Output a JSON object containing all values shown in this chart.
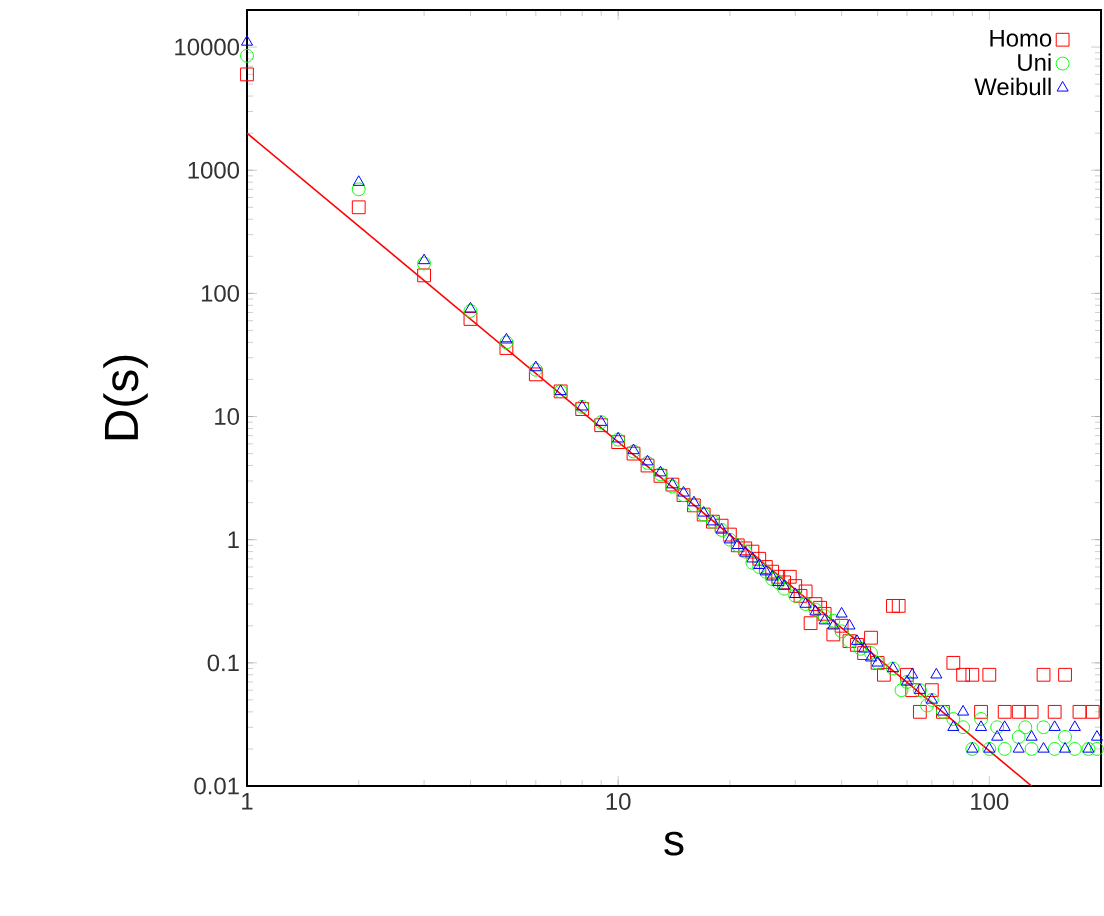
{
  "chart_data": {
    "type": "scatter",
    "xlabel": "s",
    "ylabel": "D(s)",
    "log": "xy",
    "xlim": [
      1,
      200
    ],
    "ylim": [
      0.01,
      20000
    ],
    "xticks": [
      1,
      10,
      100
    ],
    "yticks": [
      0.01,
      0.1,
      1,
      10,
      100,
      1000,
      10000
    ],
    "legend": "top right",
    "grid": false,
    "series": [
      {
        "name": "Homo",
        "color": "#ff0000",
        "marker": "square",
        "x": [
          1,
          2,
          3,
          4,
          5,
          6,
          7,
          8,
          9,
          10,
          11,
          12,
          13,
          14,
          15,
          16,
          17,
          18,
          19,
          20,
          21,
          22,
          23,
          24,
          25,
          26,
          27,
          28,
          29,
          30,
          31,
          32,
          33,
          34,
          35,
          36,
          38,
          40,
          42,
          44,
          46,
          48,
          50,
          52,
          55,
          57,
          60,
          62,
          65,
          70,
          75,
          80,
          85,
          90,
          95,
          100,
          110,
          120,
          130,
          140,
          150,
          160,
          175,
          190
        ],
        "values": [
          6000,
          500,
          140,
          62,
          36,
          22,
          16,
          11.5,
          8.5,
          6.2,
          5,
          4,
          3.3,
          2.8,
          2.3,
          1.9,
          1.6,
          1.4,
          1.3,
          1.1,
          0.9,
          0.85,
          0.8,
          0.7,
          0.6,
          0.55,
          0.5,
          0.45,
          0.5,
          0.42,
          0.35,
          0.38,
          0.21,
          0.3,
          0.28,
          0.25,
          0.17,
          0.2,
          0.15,
          0.14,
          0.12,
          0.16,
          0.1,
          0.08,
          0.29,
          0.29,
          0.08,
          0.06,
          0.04,
          0.06,
          0.04,
          0.1,
          0.08,
          0.08,
          0.04,
          0.08,
          0.04,
          0.04,
          0.04,
          0.08,
          0.04,
          0.08,
          0.04,
          0.04
        ]
      },
      {
        "name": "Uni",
        "color": "#00ff00",
        "marker": "circle",
        "x": [
          1,
          2,
          3,
          4,
          5,
          6,
          7,
          8,
          9,
          10,
          11,
          12,
          13,
          14,
          15,
          16,
          17,
          18,
          19,
          20,
          21,
          22,
          23,
          24,
          25,
          26,
          27,
          28,
          30,
          32,
          34,
          36,
          38,
          40,
          42,
          45,
          48,
          50,
          55,
          58,
          60,
          65,
          68,
          70,
          75,
          80,
          85,
          90,
          95,
          100,
          105,
          110,
          120,
          125,
          130,
          140,
          150,
          160,
          170,
          185,
          195
        ],
        "values": [
          8500,
          700,
          175,
          72,
          40,
          24,
          16,
          12,
          9,
          6.5,
          5.2,
          4.2,
          3.4,
          2.7,
          2.3,
          1.9,
          1.6,
          1.4,
          1.2,
          1.0,
          0.9,
          0.8,
          0.65,
          0.6,
          0.55,
          0.48,
          0.45,
          0.4,
          0.35,
          0.3,
          0.27,
          0.24,
          0.22,
          0.18,
          0.15,
          0.13,
          0.12,
          0.1,
          0.09,
          0.06,
          0.07,
          0.06,
          0.045,
          0.05,
          0.04,
          0.035,
          0.03,
          0.02,
          0.035,
          0.02,
          0.03,
          0.02,
          0.025,
          0.03,
          0.02,
          0.03,
          0.02,
          0.025,
          0.02,
          0.02,
          0.02
        ]
      },
      {
        "name": "Weibull",
        "color": "#0000ff",
        "marker": "triangle",
        "x": [
          1,
          2,
          3,
          4,
          5,
          6,
          7,
          8,
          9,
          10,
          11,
          12,
          13,
          14,
          15,
          16,
          17,
          18,
          19,
          20,
          21,
          22,
          23,
          24,
          25,
          26,
          27,
          28,
          30,
          32,
          34,
          36,
          38,
          40,
          42,
          44,
          46,
          48,
          50,
          55,
          60,
          62,
          65,
          70,
          72,
          75,
          80,
          85,
          90,
          95,
          100,
          105,
          110,
          120,
          130,
          140,
          150,
          160,
          170,
          185,
          195
        ],
        "values": [
          11000,
          800,
          185,
          75,
          42,
          25,
          16,
          12,
          9,
          6.6,
          5.3,
          4.3,
          3.5,
          2.8,
          2.4,
          2,
          1.65,
          1.4,
          1.2,
          1,
          0.9,
          0.78,
          0.7,
          0.62,
          0.55,
          0.5,
          0.45,
          0.42,
          0.36,
          0.3,
          0.26,
          0.22,
          0.2,
          0.25,
          0.2,
          0.15,
          0.13,
          0.11,
          0.1,
          0.09,
          0.07,
          0.08,
          0.06,
          0.05,
          0.08,
          0.04,
          0.03,
          0.04,
          0.02,
          0.03,
          0.02,
          0.025,
          0.03,
          0.02,
          0.025,
          0.02,
          0.03,
          0.02,
          0.03,
          0.02,
          0.025
        ]
      },
      {
        "type": "line",
        "color": "#ff0000",
        "x": [
          1,
          130
        ],
        "values": [
          2000,
          0.01
        ]
      }
    ]
  }
}
